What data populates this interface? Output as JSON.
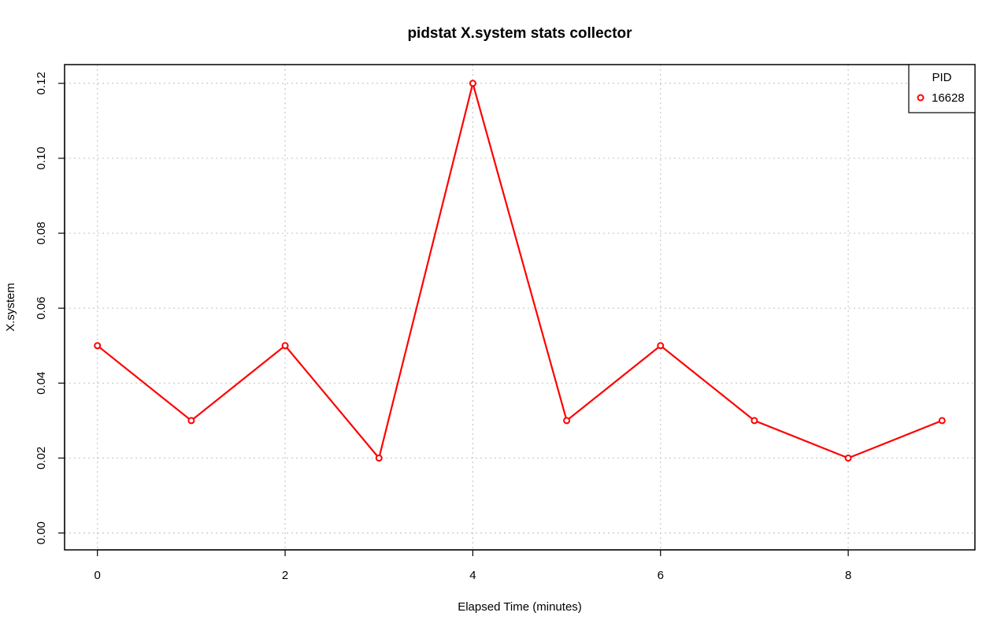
{
  "chart_data": {
    "type": "line",
    "title": "pidstat X.system stats collector",
    "xlabel": "Elapsed Time (minutes)",
    "ylabel": "X.system",
    "xlim": [
      -0.35,
      9.35
    ],
    "ylim": [
      -0.0045,
      0.125
    ],
    "x_ticks": [
      0,
      2,
      4,
      6,
      8
    ],
    "x_tick_labels": [
      "0",
      "2",
      "4",
      "6",
      "8"
    ],
    "y_ticks": [
      0.0,
      0.02,
      0.04,
      0.06,
      0.08,
      0.1,
      0.12
    ],
    "y_tick_labels": [
      "0.00",
      "0.02",
      "0.04",
      "0.06",
      "0.08",
      "0.10",
      "0.12"
    ],
    "grid_x": [
      0,
      2,
      4,
      6,
      8
    ],
    "grid_y": [
      0.0,
      0.02,
      0.04,
      0.06,
      0.08,
      0.1,
      0.12
    ],
    "grid": true,
    "legend": {
      "title": "PID",
      "position": "top-right"
    },
    "series": [
      {
        "name": "16628",
        "color": "#ff0000",
        "x": [
          0,
          1,
          2,
          3,
          4,
          5,
          6,
          7,
          8,
          9
        ],
        "values": [
          0.05,
          0.03,
          0.05,
          0.02,
          0.12,
          0.03,
          0.05,
          0.03,
          0.02,
          0.03
        ]
      }
    ]
  }
}
